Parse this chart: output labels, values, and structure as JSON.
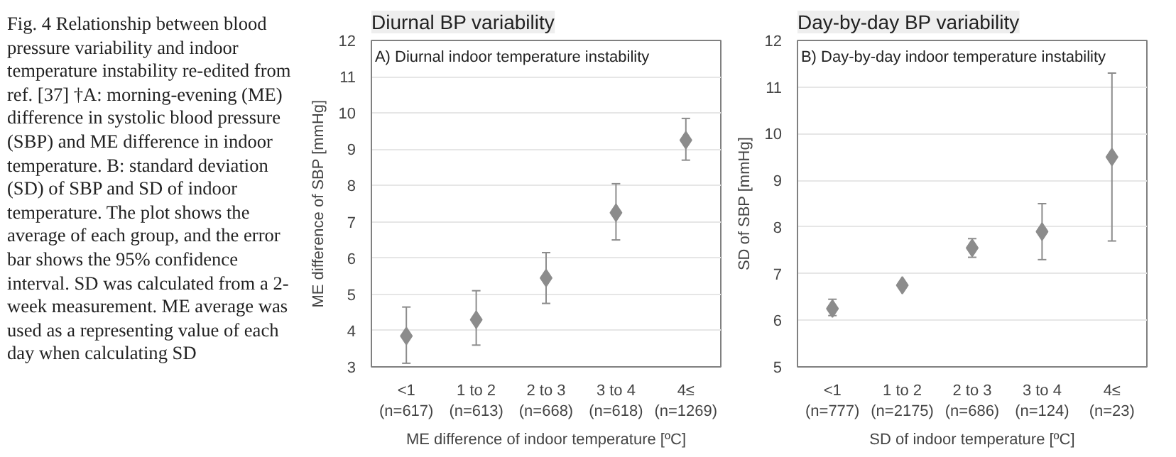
{
  "chart_data": [
    {
      "type": "scatter",
      "title": "Diurnal BP variability",
      "subtitle": "A) Diurnal indoor temperature instability",
      "xlabel": "ME difference of indoor temperature [ºC]",
      "ylabel": "ME difference of SBP [mmHg]",
      "annotations": [
        "Fig. 4 Relationship between blood pressure variability and indoor temperature instability re-edited from ref. [37] †A: morning-evening (ME) difference in systolic blood pressure (SBP) and ME difference in indoor temperature. B: standard deviation (SD) of SBP and SD of indoor temperature. The plot shows the average of each group, and the error bar shows the 95% confidence interval. SD was calculated from a 2-week measurement. ME average was used as a representing value of each day when calculating SD"
      ],
      "categories": [
        "<1\n(n=617)",
        "1 to 2\n(n=613)",
        "2 to 3\n(n=668)",
        "3 to 4\n(n=618)",
        "4≤\n(n=1269)"
      ],
      "series": [
        {
          "color": "#8c8c8c",
          "values": [
            3.85,
            4.3,
            5.45,
            7.25,
            9.25
          ],
          "errors": [
            [
              3.1,
              4.65
            ],
            [
              3.6,
              5.1
            ],
            [
              4.75,
              6.15
            ],
            [
              6.5,
              8.05
            ],
            [
              8.7,
              9.85
            ]
          ]
        }
      ],
      "ylim": [
        3,
        12
      ],
      "yticks": [
        3,
        4,
        5,
        6,
        7,
        8,
        9,
        10,
        11,
        12
      ],
      "grid": "y",
      "marker": "diamond"
    },
    {
      "type": "scatter",
      "title": "Day-by-day BP variability",
      "subtitle": "B) Day-by-day indoor temperature instability",
      "xlabel": "SD of indoor temperature [ºC]",
      "ylabel": "SD of SBP [mmHg]",
      "categories": [
        "<1\n(n=777)",
        "1 to 2\n(n=2175)",
        "2 to 3\n(n=686)",
        "3 to 4\n(n=124)",
        "4≤\n(n=23)"
      ],
      "series": [
        {
          "color": "#8c8c8c",
          "values": [
            6.25,
            6.75,
            7.55,
            7.9,
            9.5
          ],
          "errors": [
            [
              6.1,
              6.45
            ],
            [
              6.7,
              6.8
            ],
            [
              7.35,
              7.75
            ],
            [
              7.3,
              8.5
            ],
            [
              7.7,
              11.3
            ]
          ]
        }
      ],
      "ylim": [
        5,
        12
      ],
      "yticks": [
        5,
        6,
        7,
        8,
        9,
        10,
        11,
        12
      ],
      "grid": "y",
      "marker": "diamond"
    }
  ]
}
